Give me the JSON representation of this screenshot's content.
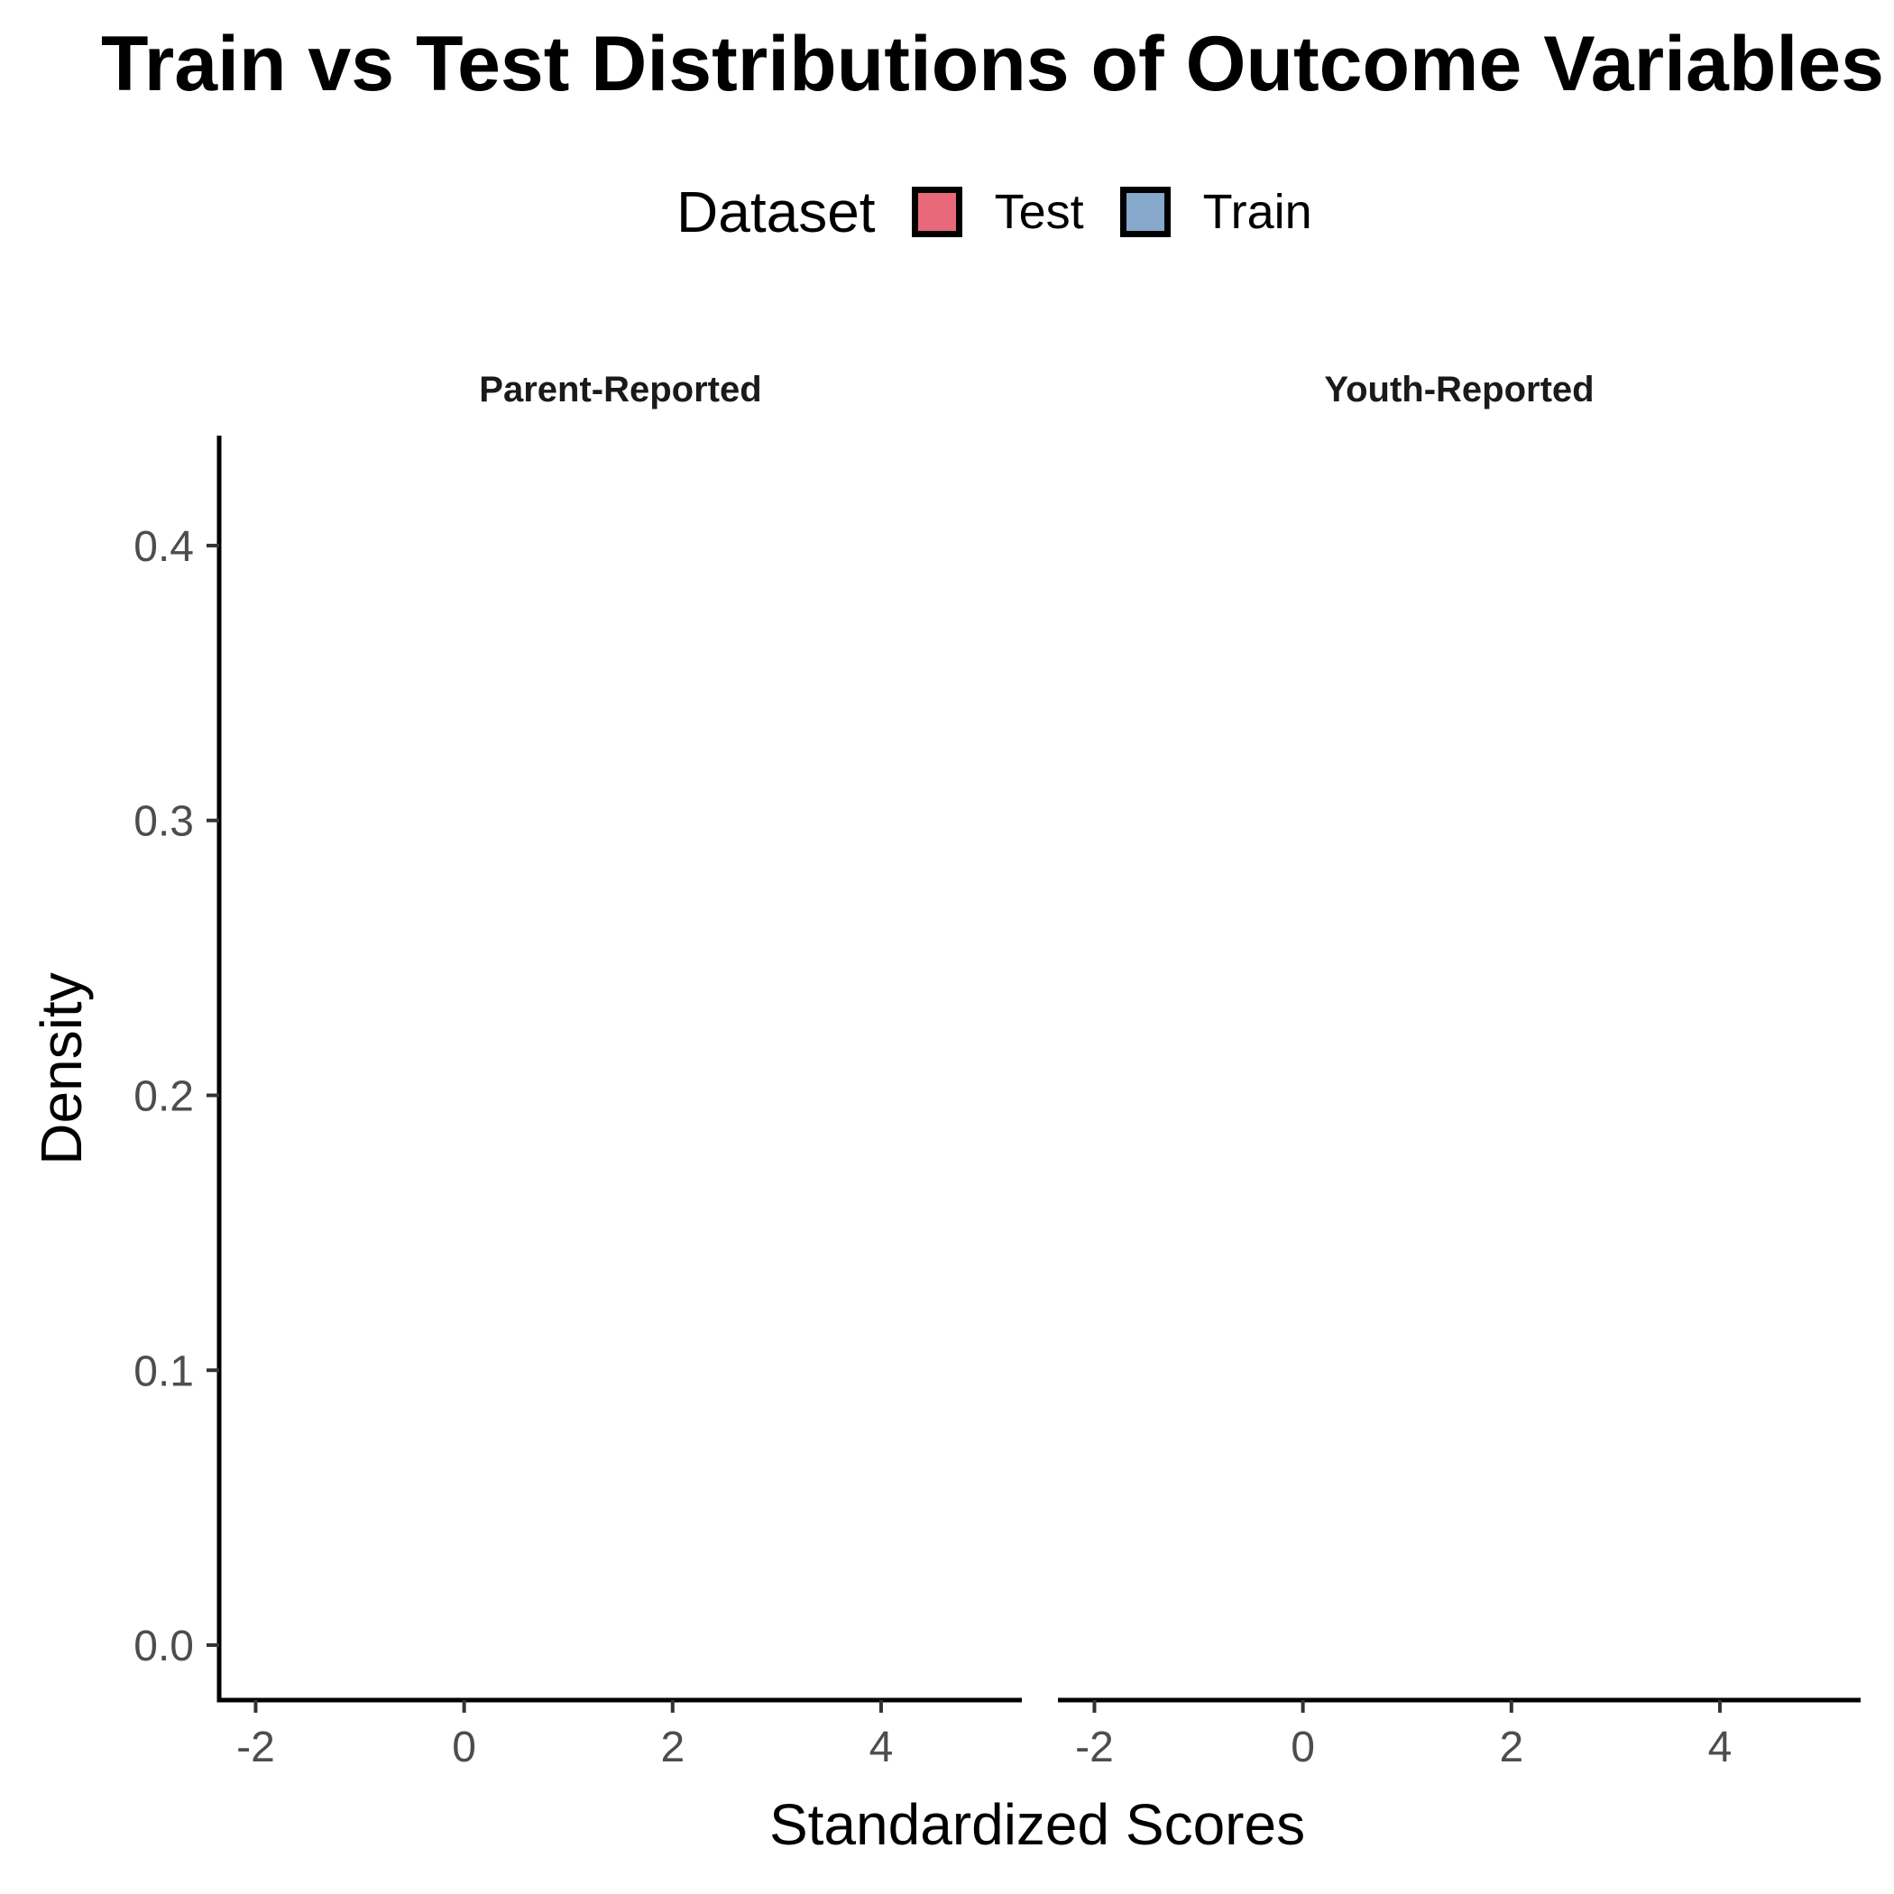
{
  "title": "Train vs Test Distributions of Outcome Variables",
  "legend": {
    "title": "Dataset",
    "items": [
      {
        "label": "Test",
        "color": "#E8697A"
      },
      {
        "label": "Train",
        "color": "#86A8CB"
      }
    ]
  },
  "chart_data": {
    "type": "area",
    "facets": [
      "Parent-Reported",
      "Youth-Reported"
    ],
    "xlabel": "Standardized Scores",
    "ylabel": "Density",
    "xlim": [
      -2.35,
      5.35
    ],
    "ylim": [
      -0.02,
      0.44
    ],
    "xticks": [
      -2,
      0,
      2,
      4
    ],
    "xtick_labels": [
      "-2",
      "0",
      "2",
      "4"
    ],
    "yticks": [
      0.0,
      0.1,
      0.2,
      0.3,
      0.4
    ],
    "ytick_labels": [
      "0.0",
      "0.1",
      "0.2",
      "0.3",
      "0.4"
    ],
    "series": [
      {
        "name": "Test",
        "color": "#E8697A",
        "values": []
      },
      {
        "name": "Train",
        "color": "#86A8CB",
        "values": []
      }
    ],
    "grid": false,
    "legend_position": "top"
  }
}
